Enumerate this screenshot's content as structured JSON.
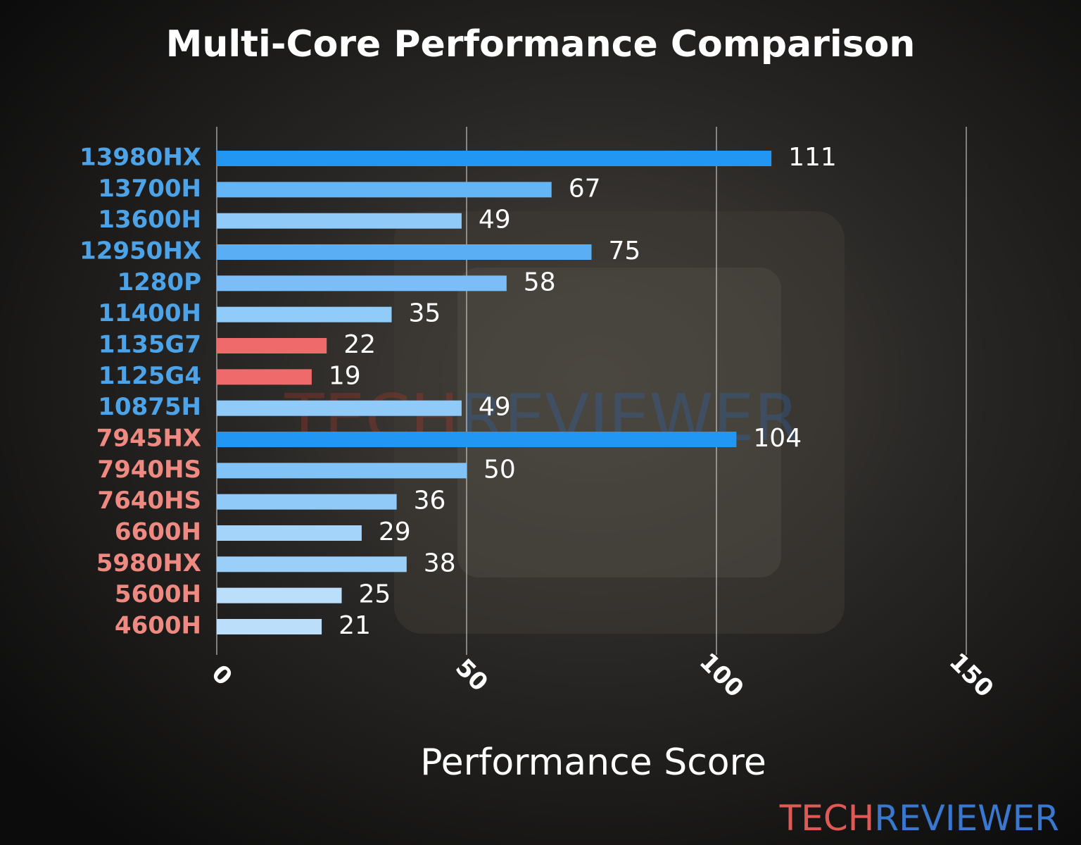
{
  "chart_data": {
    "type": "bar",
    "orientation": "horizontal",
    "title": "Multi-Core Performance Comparison",
    "x_label": "Performance Score",
    "categories": [
      "13980HX",
      "13700H",
      "13600H",
      "12950HX",
      "1280P",
      "11400H",
      "1135G7",
      "1125G4",
      "10875H",
      "7945HX",
      "7940HS",
      "7640HS",
      "6600H",
      "5980HX",
      "5600H",
      "4600H"
    ],
    "values": [
      111,
      67,
      49,
      75,
      58,
      35,
      22,
      19,
      49,
      104,
      50,
      36,
      29,
      38,
      25,
      21
    ],
    "colors": [
      "#2196f3",
      "#64b5f6",
      "#90caf9",
      "#5aaef3",
      "#7dbdf7",
      "#90cbf9",
      "#ef6b6b",
      "#ef6b6b",
      "#90caf9",
      "#2196f3",
      "#82c3f7",
      "#90caf9",
      "#a5d4fb",
      "#9acffa",
      "#bbdefb",
      "#bbdefb"
    ],
    "label_colors": [
      "#4da3e8",
      "#4da3e8",
      "#4da3e8",
      "#4da3e8",
      "#4da3e8",
      "#4da3e8",
      "#4da3e8",
      "#4da3e8",
      "#4da3e8",
      "#ef8a82",
      "#ef8a82",
      "#ef8a82",
      "#ef8a82",
      "#ef8a82",
      "#ef8a82",
      "#ef8a82"
    ],
    "xlim": [
      0,
      150
    ],
    "xticks": [
      0,
      50,
      100,
      150
    ],
    "grid": true,
    "watermark": [
      "TECH",
      "REVIEWER"
    ]
  }
}
